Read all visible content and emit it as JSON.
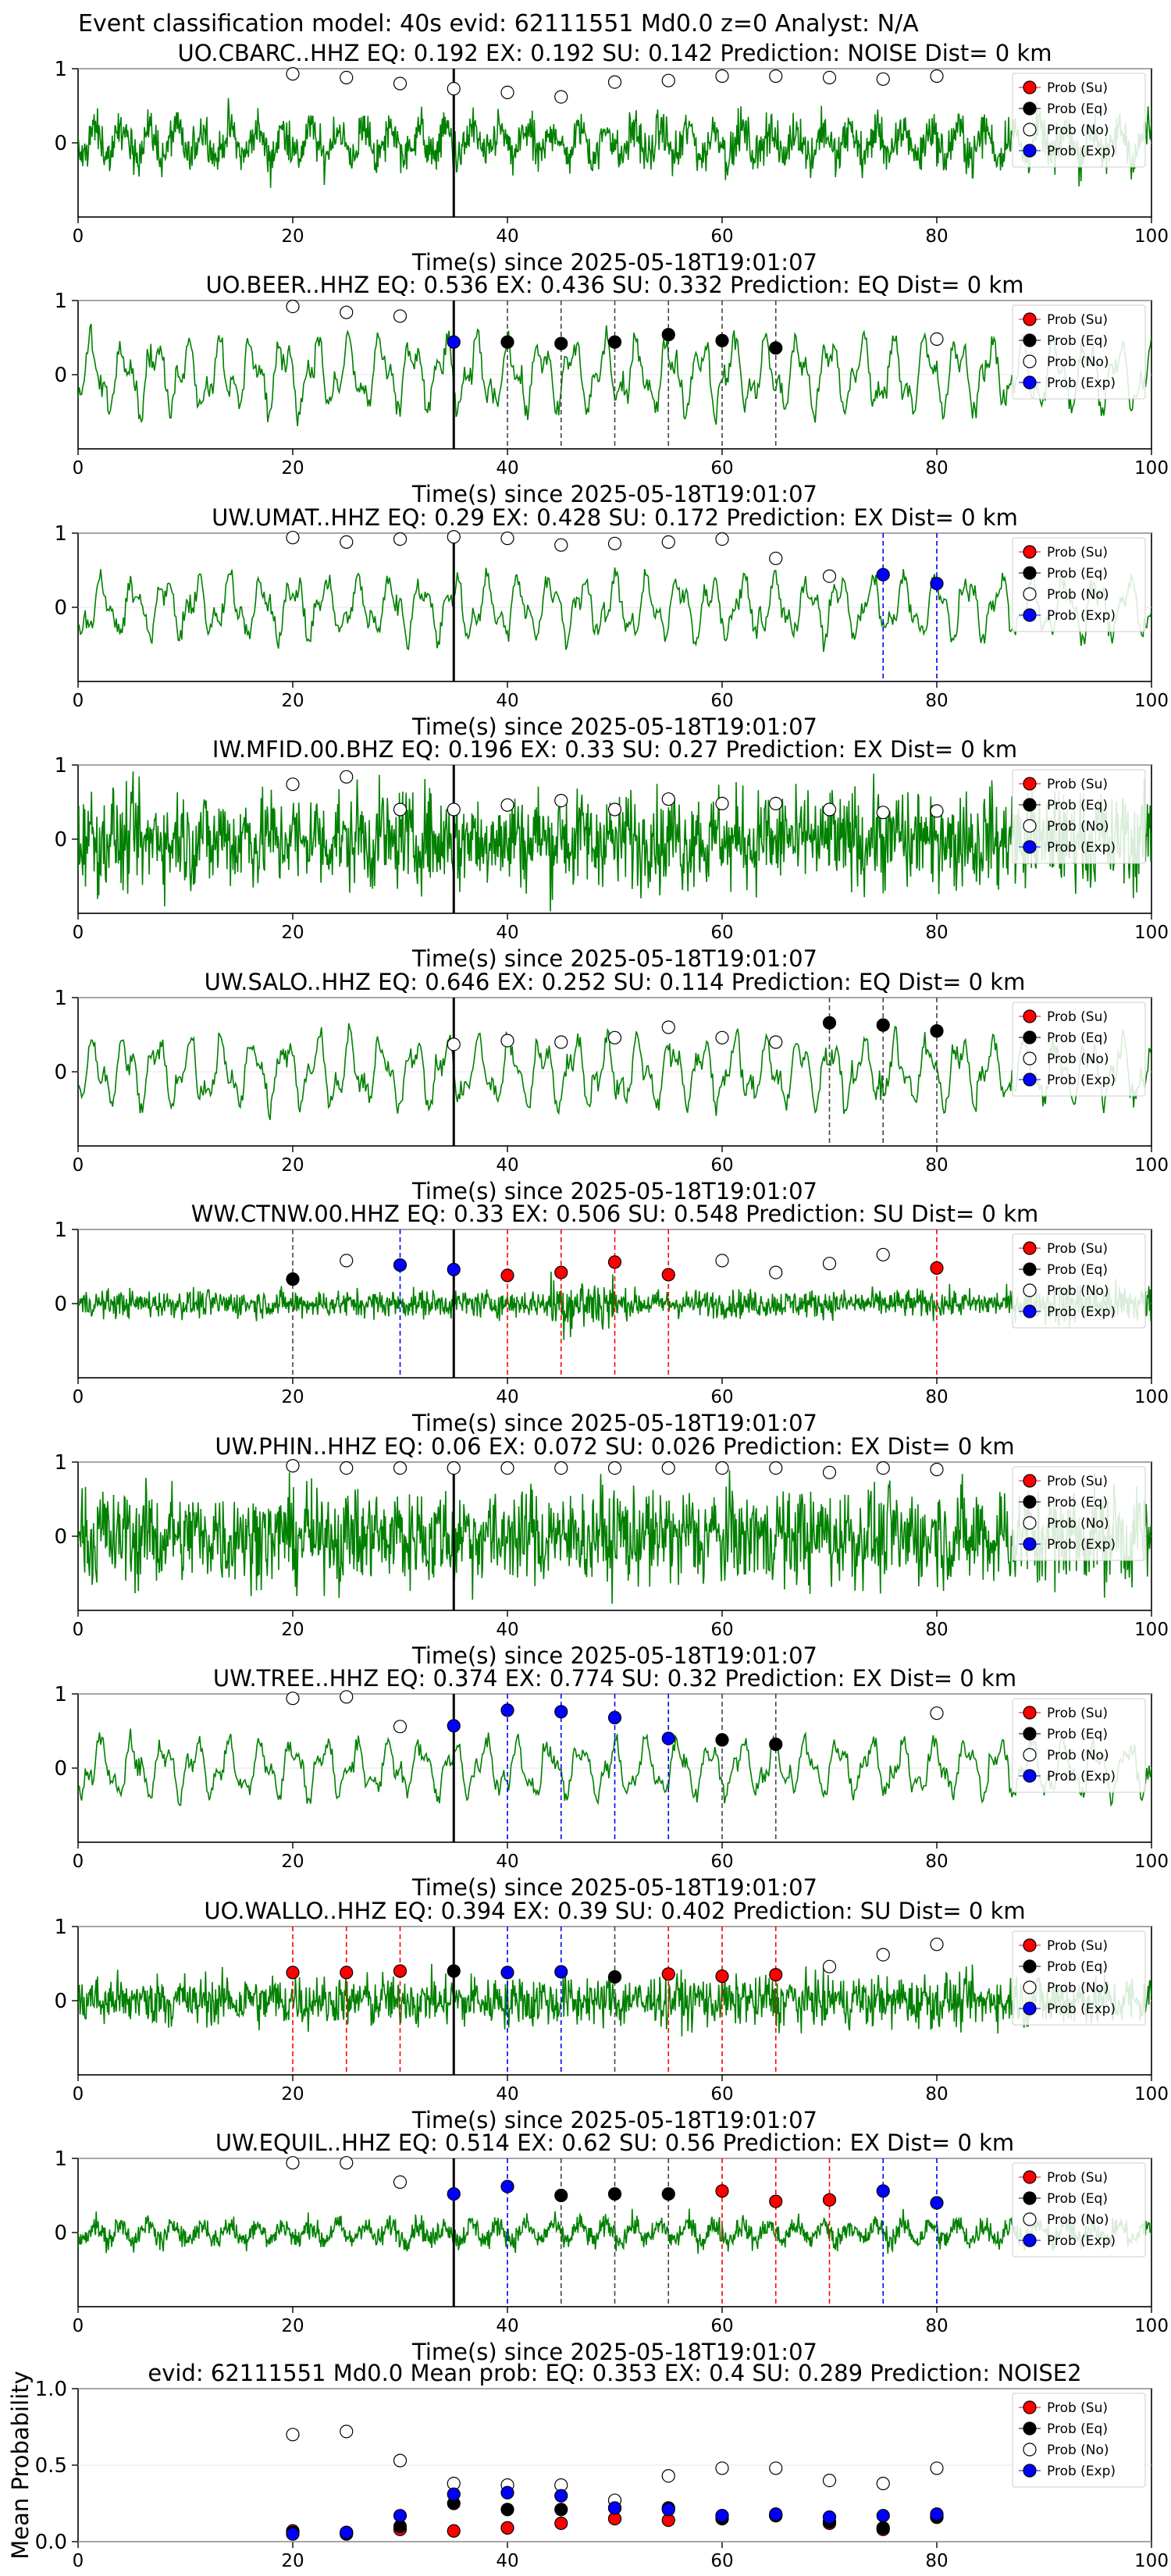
{
  "suptitle": "Event classification model: 40s evid: 62111551 Md0.0 z=0 Analyst: N/A",
  "colors": {
    "trace": "#008000",
    "su": "#ff0000",
    "eq": "#000000",
    "no": "#ffffff",
    "exp": "#0000ff",
    "pick_line": "#000000"
  },
  "legend": [
    "Prob (Su)",
    "Prob (Eq)",
    "Prob (No)",
    "Prob (Exp)"
  ],
  "chart_data": [
    {
      "type": "line",
      "title": "UO.CBARC..HHZ   EQ: 0.192  EX: 0.192  SU: 0.142   Prediction: NOISE    Dist= 0 km",
      "xlabel": "Time(s) since 2025-05-18T19:01:07",
      "xlim": [
        0,
        100
      ],
      "ylim": [
        -1,
        1
      ],
      "yticks": [
        0,
        1
      ],
      "xticks": [
        0,
        20,
        40,
        60,
        80,
        100
      ],
      "pick_time": 35,
      "amplitude": 0.55,
      "style": "noisy",
      "points": [
        {
          "x": 20,
          "cls": "no",
          "y": 0.93
        },
        {
          "x": 25,
          "cls": "no",
          "y": 0.88
        },
        {
          "x": 30,
          "cls": "no",
          "y": 0.8
        },
        {
          "x": 35,
          "cls": "no",
          "y": 0.73
        },
        {
          "x": 40,
          "cls": "no",
          "y": 0.68
        },
        {
          "x": 45,
          "cls": "no",
          "y": 0.62
        },
        {
          "x": 50,
          "cls": "no",
          "y": 0.82
        },
        {
          "x": 55,
          "cls": "no",
          "y": 0.84
        },
        {
          "x": 60,
          "cls": "no",
          "y": 0.9
        },
        {
          "x": 65,
          "cls": "no",
          "y": 0.9
        },
        {
          "x": 70,
          "cls": "no",
          "y": 0.88
        },
        {
          "x": 75,
          "cls": "no",
          "y": 0.86
        },
        {
          "x": 80,
          "cls": "no",
          "y": 0.9
        }
      ]
    },
    {
      "type": "line",
      "title": "UO.BEER..HHZ   EQ: 0.536  EX: 0.436  SU: 0.332   Prediction: EQ    Dist= 0 km",
      "xlabel": "Time(s) since 2025-05-18T19:01:07",
      "xlim": [
        0,
        100
      ],
      "ylim": [
        -1,
        1
      ],
      "yticks": [
        0,
        1
      ],
      "xticks": [
        0,
        20,
        40,
        60,
        80,
        100
      ],
      "pick_time": 35,
      "amplitude": 0.65,
      "style": "smooth",
      "points": [
        {
          "x": 20,
          "cls": "no",
          "y": 0.92
        },
        {
          "x": 25,
          "cls": "no",
          "y": 0.84
        },
        {
          "x": 30,
          "cls": "no",
          "y": 0.79
        },
        {
          "x": 35,
          "cls": "exp",
          "y": 0.44
        },
        {
          "x": 40,
          "cls": "eq",
          "y": 0.44
        },
        {
          "x": 45,
          "cls": "eq",
          "y": 0.42
        },
        {
          "x": 50,
          "cls": "eq",
          "y": 0.44
        },
        {
          "x": 55,
          "cls": "eq",
          "y": 0.54
        },
        {
          "x": 60,
          "cls": "eq",
          "y": 0.46
        },
        {
          "x": 65,
          "cls": "eq",
          "y": 0.36
        },
        {
          "x": 80,
          "cls": "no",
          "y": 0.48
        }
      ]
    },
    {
      "type": "line",
      "title": "UW.UMAT..HHZ   EQ: 0.29  EX: 0.428  SU: 0.172   Prediction: EX    Dist= 0 km",
      "xlabel": "Time(s) since 2025-05-18T19:01:07",
      "xlim": [
        0,
        100
      ],
      "ylim": [
        -1,
        1
      ],
      "yticks": [
        0,
        1
      ],
      "xticks": [
        0,
        20,
        40,
        60,
        80,
        100
      ],
      "pick_time": 35,
      "amplitude": 0.55,
      "style": "smooth",
      "points": [
        {
          "x": 20,
          "cls": "no",
          "y": 0.94
        },
        {
          "x": 25,
          "cls": "no",
          "y": 0.88
        },
        {
          "x": 30,
          "cls": "no",
          "y": 0.92
        },
        {
          "x": 35,
          "cls": "no",
          "y": 0.95
        },
        {
          "x": 40,
          "cls": "no",
          "y": 0.93
        },
        {
          "x": 45,
          "cls": "no",
          "y": 0.84
        },
        {
          "x": 50,
          "cls": "no",
          "y": 0.86
        },
        {
          "x": 55,
          "cls": "no",
          "y": 0.88
        },
        {
          "x": 60,
          "cls": "no",
          "y": 0.92
        },
        {
          "x": 65,
          "cls": "no",
          "y": 0.66
        },
        {
          "x": 70,
          "cls": "no",
          "y": 0.42
        },
        {
          "x": 75,
          "cls": "exp",
          "y": 0.44
        },
        {
          "x": 80,
          "cls": "exp",
          "y": 0.32
        }
      ]
    },
    {
      "type": "line",
      "title": "IW.MFID.00.BHZ   EQ: 0.196  EX: 0.33  SU: 0.27   Prediction: EX    Dist= 0 km",
      "xlabel": "Time(s) since 2025-05-18T19:01:07",
      "xlim": [
        0,
        100
      ],
      "ylim": [
        -1,
        1
      ],
      "yticks": [
        0,
        1
      ],
      "xticks": [
        0,
        20,
        40,
        60,
        80,
        100
      ],
      "pick_time": 35,
      "amplitude": 0.75,
      "style": "dense",
      "points": [
        {
          "x": 20,
          "cls": "no",
          "y": 0.74
        },
        {
          "x": 25,
          "cls": "no",
          "y": 0.84
        },
        {
          "x": 30,
          "cls": "no",
          "y": 0.4
        },
        {
          "x": 35,
          "cls": "no",
          "y": 0.4
        },
        {
          "x": 40,
          "cls": "no",
          "y": 0.46
        },
        {
          "x": 45,
          "cls": "no",
          "y": 0.52
        },
        {
          "x": 50,
          "cls": "no",
          "y": 0.4
        },
        {
          "x": 55,
          "cls": "no",
          "y": 0.54
        },
        {
          "x": 60,
          "cls": "no",
          "y": 0.48
        },
        {
          "x": 65,
          "cls": "no",
          "y": 0.48
        },
        {
          "x": 70,
          "cls": "no",
          "y": 0.4
        },
        {
          "x": 75,
          "cls": "no",
          "y": 0.36
        },
        {
          "x": 80,
          "cls": "no",
          "y": 0.38
        }
      ]
    },
    {
      "type": "line",
      "title": "UW.SALO..HHZ   EQ: 0.646  EX: 0.252  SU: 0.114   Prediction: EQ    Dist= 0 km",
      "xlabel": "Time(s) since 2025-05-18T19:01:07",
      "xlim": [
        0,
        100
      ],
      "ylim": [
        -1,
        1
      ],
      "yticks": [
        0,
        1
      ],
      "xticks": [
        0,
        20,
        40,
        60,
        80,
        100
      ],
      "pick_time": 35,
      "amplitude": 0.6,
      "style": "smooth",
      "points": [
        {
          "x": 35,
          "cls": "no",
          "y": 0.37
        },
        {
          "x": 40,
          "cls": "no",
          "y": 0.42
        },
        {
          "x": 45,
          "cls": "no",
          "y": 0.4
        },
        {
          "x": 50,
          "cls": "no",
          "y": 0.46
        },
        {
          "x": 55,
          "cls": "no",
          "y": 0.6
        },
        {
          "x": 60,
          "cls": "no",
          "y": 0.46
        },
        {
          "x": 65,
          "cls": "no",
          "y": 0.4
        },
        {
          "x": 70,
          "cls": "eq",
          "y": 0.66
        },
        {
          "x": 75,
          "cls": "eq",
          "y": 0.63
        },
        {
          "x": 80,
          "cls": "eq",
          "y": 0.55
        }
      ]
    },
    {
      "type": "line",
      "title": "WW.CTNW.00.HHZ   EQ: 0.33  EX: 0.506  SU: 0.548   Prediction: SU    Dist= 0 km",
      "xlabel": "Time(s) since 2025-05-18T19:01:07",
      "xlim": [
        0,
        100
      ],
      "ylim": [
        -1,
        1
      ],
      "yticks": [
        0,
        1
      ],
      "xticks": [
        0,
        20,
        40,
        60,
        80,
        100
      ],
      "pick_time": 35,
      "amplitude": 0.18,
      "style": "quiet",
      "points": [
        {
          "x": 20,
          "cls": "eq",
          "y": 0.33
        },
        {
          "x": 25,
          "cls": "no",
          "y": 0.58
        },
        {
          "x": 30,
          "cls": "exp",
          "y": 0.52
        },
        {
          "x": 35,
          "cls": "exp",
          "y": 0.46
        },
        {
          "x": 40,
          "cls": "su",
          "y": 0.38
        },
        {
          "x": 45,
          "cls": "su",
          "y": 0.42
        },
        {
          "x": 50,
          "cls": "su",
          "y": 0.56
        },
        {
          "x": 55,
          "cls": "su",
          "y": 0.39
        },
        {
          "x": 60,
          "cls": "no",
          "y": 0.58
        },
        {
          "x": 65,
          "cls": "no",
          "y": 0.42
        },
        {
          "x": 70,
          "cls": "no",
          "y": 0.54
        },
        {
          "x": 75,
          "cls": "no",
          "y": 0.66
        },
        {
          "x": 80,
          "cls": "su",
          "y": 0.48
        }
      ]
    },
    {
      "type": "line",
      "title": "UW.PHIN..HHZ   EQ: 0.06  EX: 0.072  SU: 0.026   Prediction: EX    Dist= 0 km",
      "xlabel": "Time(s) since 2025-05-18T19:01:07",
      "xlim": [
        0,
        100
      ],
      "ylim": [
        -1,
        1
      ],
      "yticks": [
        0,
        1
      ],
      "xticks": [
        0,
        20,
        40,
        60,
        80,
        100
      ],
      "pick_time": 35,
      "amplitude": 0.75,
      "style": "dense",
      "points": [
        {
          "x": 20,
          "cls": "no",
          "y": 0.95
        },
        {
          "x": 25,
          "cls": "no",
          "y": 0.92
        },
        {
          "x": 30,
          "cls": "no",
          "y": 0.92
        },
        {
          "x": 35,
          "cls": "no",
          "y": 0.92
        },
        {
          "x": 40,
          "cls": "no",
          "y": 0.92
        },
        {
          "x": 45,
          "cls": "no",
          "y": 0.92
        },
        {
          "x": 50,
          "cls": "no",
          "y": 0.92
        },
        {
          "x": 55,
          "cls": "no",
          "y": 0.92
        },
        {
          "x": 60,
          "cls": "no",
          "y": 0.92
        },
        {
          "x": 65,
          "cls": "no",
          "y": 0.92
        },
        {
          "x": 70,
          "cls": "no",
          "y": 0.86
        },
        {
          "x": 75,
          "cls": "no",
          "y": 0.92
        },
        {
          "x": 80,
          "cls": "no",
          "y": 0.9
        }
      ]
    },
    {
      "type": "line",
      "title": "UW.TREE..HHZ   EQ: 0.374  EX: 0.774  SU: 0.32   Prediction: EX    Dist= 0 km",
      "xlabel": "Time(s) since 2025-05-18T19:01:07",
      "xlim": [
        0,
        100
      ],
      "ylim": [
        -1,
        1
      ],
      "yticks": [
        0,
        1
      ],
      "xticks": [
        0,
        20,
        40,
        60,
        80,
        100
      ],
      "pick_time": 35,
      "amplitude": 0.5,
      "style": "smooth",
      "points": [
        {
          "x": 20,
          "cls": "no",
          "y": 0.94
        },
        {
          "x": 25,
          "cls": "no",
          "y": 0.96
        },
        {
          "x": 30,
          "cls": "no",
          "y": 0.56
        },
        {
          "x": 35,
          "cls": "exp",
          "y": 0.57
        },
        {
          "x": 40,
          "cls": "exp",
          "y": 0.78
        },
        {
          "x": 45,
          "cls": "exp",
          "y": 0.76
        },
        {
          "x": 50,
          "cls": "exp",
          "y": 0.68
        },
        {
          "x": 55,
          "cls": "exp",
          "y": 0.4
        },
        {
          "x": 60,
          "cls": "eq",
          "y": 0.38
        },
        {
          "x": 65,
          "cls": "eq",
          "y": 0.32
        },
        {
          "x": 80,
          "cls": "no",
          "y": 0.74
        }
      ]
    },
    {
      "type": "line",
      "title": "UO.WALLO..HHZ   EQ: 0.394  EX: 0.39  SU: 0.402   Prediction: SU    Dist= 0 km",
      "xlabel": "Time(s) since 2025-05-18T19:01:07",
      "xlim": [
        0,
        100
      ],
      "ylim": [
        -1,
        1
      ],
      "yticks": [
        0,
        1
      ],
      "xticks": [
        0,
        20,
        40,
        60,
        80,
        100
      ],
      "pick_time": 35,
      "amplitude": 0.4,
      "style": "dense",
      "points": [
        {
          "x": 20,
          "cls": "su",
          "y": 0.38
        },
        {
          "x": 25,
          "cls": "su",
          "y": 0.38
        },
        {
          "x": 30,
          "cls": "su",
          "y": 0.4
        },
        {
          "x": 35,
          "cls": "eq",
          "y": 0.4
        },
        {
          "x": 40,
          "cls": "exp",
          "y": 0.38
        },
        {
          "x": 45,
          "cls": "exp",
          "y": 0.39
        },
        {
          "x": 50,
          "cls": "eq",
          "y": 0.32
        },
        {
          "x": 55,
          "cls": "su",
          "y": 0.36
        },
        {
          "x": 60,
          "cls": "su",
          "y": 0.33
        },
        {
          "x": 65,
          "cls": "su",
          "y": 0.35
        },
        {
          "x": 70,
          "cls": "no",
          "y": 0.46
        },
        {
          "x": 75,
          "cls": "no",
          "y": 0.62
        },
        {
          "x": 80,
          "cls": "no",
          "y": 0.76
        }
      ]
    },
    {
      "type": "line",
      "title": "UW.EQUIL..HHZ   EQ: 0.514  EX: 0.62  SU: 0.56   Prediction: EX    Dist= 0 km",
      "xlabel": "Time(s) since 2025-05-18T19:01:07",
      "xlim": [
        0,
        100
      ],
      "ylim": [
        -1,
        1
      ],
      "yticks": [
        0,
        1
      ],
      "xticks": [
        0,
        20,
        40,
        60,
        80,
        100
      ],
      "pick_time": 35,
      "amplitude": 0.3,
      "style": "noisy",
      "points": [
        {
          "x": 20,
          "cls": "no",
          "y": 0.94
        },
        {
          "x": 25,
          "cls": "no",
          "y": 0.94
        },
        {
          "x": 30,
          "cls": "no",
          "y": 0.68
        },
        {
          "x": 35,
          "cls": "exp",
          "y": 0.52
        },
        {
          "x": 40,
          "cls": "exp",
          "y": 0.62
        },
        {
          "x": 45,
          "cls": "eq",
          "y": 0.5
        },
        {
          "x": 50,
          "cls": "eq",
          "y": 0.52
        },
        {
          "x": 55,
          "cls": "eq",
          "y": 0.52
        },
        {
          "x": 60,
          "cls": "su",
          "y": 0.56
        },
        {
          "x": 65,
          "cls": "su",
          "y": 0.42
        },
        {
          "x": 70,
          "cls": "su",
          "y": 0.44
        },
        {
          "x": 75,
          "cls": "exp",
          "y": 0.56
        },
        {
          "x": 80,
          "cls": "exp",
          "y": 0.4
        }
      ]
    },
    {
      "type": "scatter",
      "title": "evid: 62111551  Md0.0   Mean prob:   EQ: 0.353  EX: 0.4  SU: 0.289   Prediction: NOISE2",
      "ylabel": "Mean Probability",
      "xlim": [
        0,
        100
      ],
      "ylim": [
        0,
        1
      ],
      "yticks": [
        0,
        0.5,
        1
      ],
      "xticks": [
        0,
        20,
        40,
        60,
        80,
        100
      ],
      "series": [
        {
          "name": "Prob (Su)",
          "cls": "su",
          "x": [
            20,
            25,
            30,
            35,
            40,
            45,
            50,
            55,
            60,
            65,
            70,
            75,
            80
          ],
          "values": [
            0.07,
            0.06,
            0.08,
            0.07,
            0.09,
            0.12,
            0.15,
            0.14,
            0.17,
            0.17,
            0.12,
            0.08,
            0.16
          ]
        },
        {
          "name": "Prob (Eq)",
          "cls": "eq",
          "x": [
            20,
            25,
            30,
            35,
            40,
            45,
            50,
            55,
            60,
            65,
            70,
            75,
            80
          ],
          "values": [
            0.06,
            0.05,
            0.1,
            0.25,
            0.21,
            0.21,
            0.22,
            0.22,
            0.15,
            0.17,
            0.13,
            0.09,
            0.16
          ]
        },
        {
          "name": "Prob (No)",
          "cls": "no",
          "x": [
            20,
            25,
            30,
            35,
            40,
            45,
            50,
            55,
            60,
            65,
            70,
            75,
            80
          ],
          "values": [
            0.7,
            0.72,
            0.53,
            0.38,
            0.37,
            0.37,
            0.27,
            0.43,
            0.48,
            0.48,
            0.4,
            0.38,
            0.48
          ]
        },
        {
          "name": "Prob (Exp)",
          "cls": "exp",
          "x": [
            20,
            25,
            30,
            35,
            40,
            45,
            50,
            55,
            60,
            65,
            70,
            75,
            80
          ],
          "values": [
            0.05,
            0.06,
            0.17,
            0.31,
            0.32,
            0.3,
            0.22,
            0.21,
            0.17,
            0.18,
            0.16,
            0.17,
            0.18
          ]
        }
      ]
    }
  ]
}
